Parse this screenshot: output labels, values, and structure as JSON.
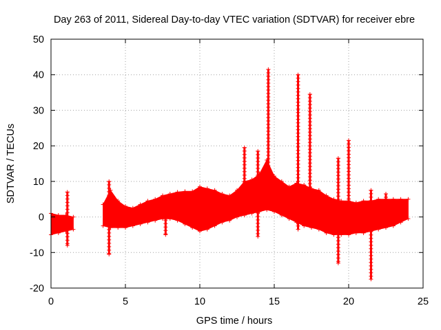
{
  "chart_data": {
    "type": "scatter",
    "title": "Day 263 of 2011, Sidereal Day-to-day VTEC variation (SDTVAR) for receiver ebre",
    "xlabel": "GPS time / hours",
    "ylabel": "SDTVAR / TECUs",
    "xlim": [
      0,
      25
    ],
    "ylim": [
      -20,
      50
    ],
    "x_ticks": [
      0,
      5,
      10,
      15,
      20,
      25
    ],
    "y_ticks": [
      -20,
      -10,
      0,
      10,
      20,
      30,
      40,
      50
    ],
    "x_tick_labels": [
      "0",
      "5",
      "10",
      "15",
      "20",
      "25"
    ],
    "y_tick_labels": [
      "-20",
      "-10",
      "0",
      "10",
      "20",
      "30",
      "40",
      "50"
    ],
    "grid": true,
    "marker": "+",
    "color": "#ff0000",
    "series": [
      {
        "name": "SDTVAR",
        "envelope": {
          "x": [
            0.0,
            0.5,
            1.0,
            1.5,
            3.5,
            4.0,
            4.5,
            5.0,
            5.5,
            6.0,
            6.5,
            7.0,
            7.5,
            8.0,
            8.5,
            9.0,
            9.5,
            10.0,
            10.5,
            11.0,
            11.5,
            12.0,
            12.5,
            13.0,
            13.5,
            14.0,
            14.5,
            15.0,
            15.5,
            16.0,
            16.5,
            17.0,
            17.5,
            18.0,
            18.5,
            19.0,
            19.5,
            20.0,
            20.5,
            21.0,
            21.5,
            22.0,
            22.5,
            23.0,
            23.5,
            24.0
          ],
          "upper": [
            1.0,
            0.5,
            0.5,
            0.0,
            3.5,
            7.5,
            4.5,
            3.0,
            2.5,
            3.5,
            4.5,
            5.0,
            6.0,
            6.5,
            7.0,
            7.2,
            7.2,
            8.5,
            8.0,
            7.5,
            6.5,
            6.0,
            7.5,
            10.0,
            10.5,
            12.0,
            16.0,
            11.5,
            10.0,
            8.5,
            9.5,
            9.0,
            8.0,
            7.5,
            6.0,
            5.0,
            4.5,
            4.5,
            4.0,
            4.5,
            4.5,
            5.0,
            5.0,
            5.0,
            5.0,
            5.0
          ],
          "lower": [
            -5.0,
            -4.5,
            -4.0,
            -3.5,
            -2.5,
            -3.0,
            -3.0,
            -3.0,
            -2.5,
            -2.0,
            -1.5,
            -1.0,
            -0.5,
            -0.5,
            -1.0,
            -2.0,
            -3.0,
            -4.0,
            -3.5,
            -2.5,
            -1.5,
            -1.0,
            0.0,
            0.5,
            1.0,
            1.5,
            2.0,
            1.5,
            0.5,
            -0.5,
            -1.5,
            -2.5,
            -3.0,
            -3.5,
            -4.5,
            -5.0,
            -5.0,
            -5.0,
            -4.5,
            -4.5,
            -4.0,
            -3.5,
            -3.0,
            -2.5,
            -1.5,
            -0.5
          ]
        },
        "spikes": [
          {
            "x": 1.1,
            "y_max": 7.0,
            "y_min": -8.0
          },
          {
            "x": 3.9,
            "y_max": 10.0,
            "y_min": -10.5
          },
          {
            "x": 7.7,
            "y_max": 2.0,
            "y_min": -5.0
          },
          {
            "x": 13.0,
            "y_max": 19.5,
            "y_min": 3.0
          },
          {
            "x": 13.9,
            "y_max": 18.5,
            "y_min": -5.5
          },
          {
            "x": 14.6,
            "y_max": 41.5,
            "y_min": 3.0
          },
          {
            "x": 16.6,
            "y_max": 40.0,
            "y_min": -3.5
          },
          {
            "x": 17.4,
            "y_max": 34.5,
            "y_min": -2.5
          },
          {
            "x": 19.3,
            "y_max": 16.5,
            "y_min": -13.0
          },
          {
            "x": 20.0,
            "y_max": 21.5,
            "y_min": 4.0
          },
          {
            "x": 21.5,
            "y_max": 7.5,
            "y_min": -17.5
          },
          {
            "x": 22.5,
            "y_max": 6.5,
            "y_min": -2.0
          }
        ]
      }
    ]
  }
}
